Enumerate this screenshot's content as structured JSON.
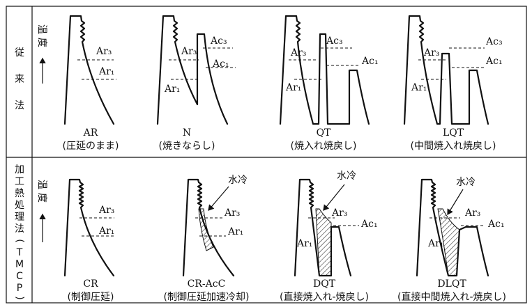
{
  "rows": [
    {
      "label_chars": [
        "従",
        "来",
        "法"
      ],
      "axis_chars": [
        "温",
        "度"
      ],
      "panels": [
        {
          "name": "AR",
          "caption": "(圧延のまま)"
        },
        {
          "name": "N",
          "caption": "(焼きならし)"
        },
        {
          "name": "QT",
          "caption": "(焼入れ焼戻し)"
        },
        {
          "name": "LQT",
          "caption": "(中間焼入れ焼戻し)"
        }
      ]
    },
    {
      "label_chars": [
        "加",
        "工",
        "熱",
        "処",
        "理",
        "法",
        "(",
        "T",
        "M",
        "C",
        "P",
        ")"
      ],
      "axis_chars": [
        "温",
        "度"
      ],
      "panels": [
        {
          "name": "CR",
          "caption": "(制御圧延)"
        },
        {
          "name": "CR-AcC",
          "caption": "(制御圧延加速冷却)"
        },
        {
          "name": "DQT",
          "caption": "(直接焼入れ-焼戻し)"
        },
        {
          "name": "DLQT",
          "caption": "(直接中間焼入れ-焼戻し)"
        }
      ]
    }
  ],
  "labels": {
    "ar3": "Ar₃",
    "ar1": "Ar₁",
    "ac3": "Ac₃",
    "ac1": "Ac₁",
    "water_cool": "水冷"
  }
}
